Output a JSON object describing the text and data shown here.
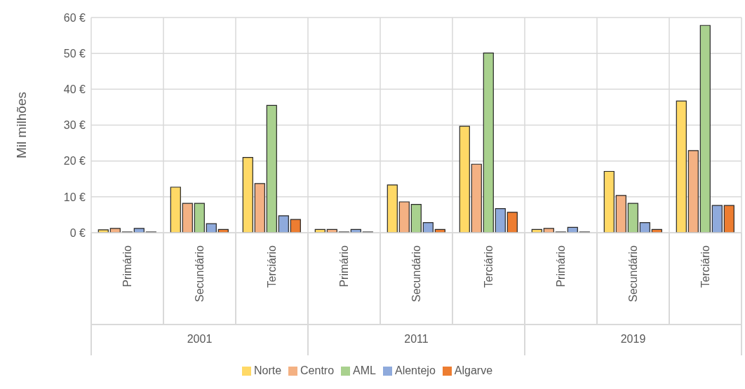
{
  "chart_data": {
    "type": "bar",
    "ylabel": "Mil milhões",
    "categories": [
      "Primário",
      "Secundário",
      "Terciário",
      "Primário",
      "Secundário",
      "Terciário",
      "Primário",
      "Secundário",
      "Terciário"
    ],
    "annotations": [
      "2001",
      "2011",
      "2019"
    ],
    "series": [
      {
        "name": "Norte",
        "color": "#ffd966",
        "values": [
          0.8,
          12.7,
          21,
          0.9,
          13.3,
          29.7,
          0.9,
          17.1,
          36.7
        ]
      },
      {
        "name": "Centro",
        "color": "#f4b183",
        "values": [
          1.2,
          8.2,
          13.7,
          0.9,
          8.6,
          19.1,
          1.2,
          10.4,
          22.9
        ]
      },
      {
        "name": "AML",
        "color": "#a9d18e",
        "values": [
          0.2,
          8.2,
          35.5,
          0.2,
          7.9,
          50.1,
          0.2,
          8.2,
          57.8
        ]
      },
      {
        "name": "Alentejo",
        "color": "#8faadc",
        "values": [
          1.2,
          2.5,
          4.7,
          0.9,
          2.8,
          6.7,
          1.5,
          2.8,
          7.6
        ]
      },
      {
        "name": "Algarve",
        "color": "#ed7d31",
        "values": [
          0.2,
          0.9,
          3.7,
          0.2,
          0.9,
          5.7,
          0.2,
          0.9,
          7.6
        ]
      }
    ],
    "ylim": [
      0,
      60
    ],
    "yticks": [
      {
        "value": 0,
        "label": "0 €"
      },
      {
        "value": 10,
        "label": "10 €"
      },
      {
        "value": 20,
        "label": "20 €"
      },
      {
        "value": 30,
        "label": "30 €"
      },
      {
        "value": 40,
        "label": "40 €"
      },
      {
        "value": 50,
        "label": "50 €"
      },
      {
        "value": 60,
        "label": "60 €"
      }
    ],
    "grid": true,
    "legend": "bottom"
  }
}
